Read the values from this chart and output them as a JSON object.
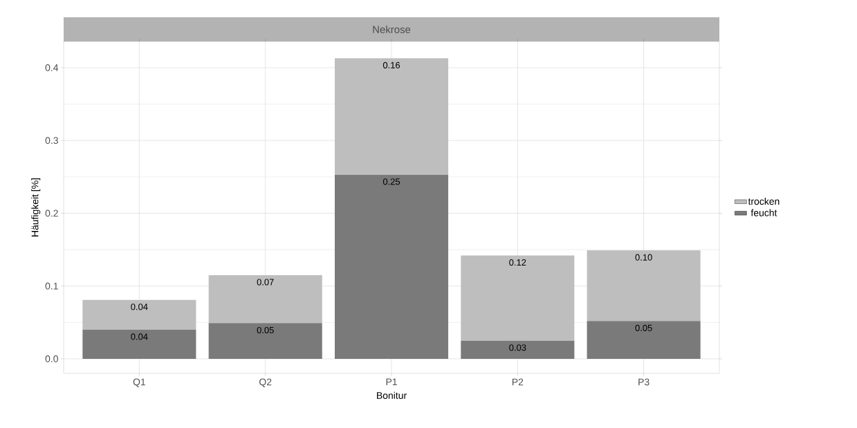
{
  "chart_data": {
    "type": "bar",
    "title": "Nekrose",
    "xlabel": "Bonitur",
    "ylabel": "Häufigkeit [%]",
    "categories": [
      "Q1",
      "Q2",
      "P1",
      "P2",
      "P3"
    ],
    "stacked": true,
    "series": [
      {
        "name": "feucht",
        "color": "#7a7a7a",
        "values": [
          0.04,
          0.049,
          0.253,
          0.025,
          0.052
        ],
        "value_labels": [
          "0.04",
          "0.05",
          "0.25",
          "0.03",
          "0.05"
        ]
      },
      {
        "name": "trocken",
        "color": "#bebebe",
        "values": [
          0.041,
          0.066,
          0.16,
          0.117,
          0.097
        ],
        "value_labels": [
          "0.04",
          "0.07",
          "0.16",
          "0.12",
          "0.10"
        ]
      }
    ],
    "ylim": [
      -0.02,
      0.436
    ],
    "yticks": [
      {
        "value": 0,
        "label": "0.0"
      },
      0.1,
      0.2,
      0.3,
      0.4
    ],
    "grid": true,
    "legend": "right"
  }
}
